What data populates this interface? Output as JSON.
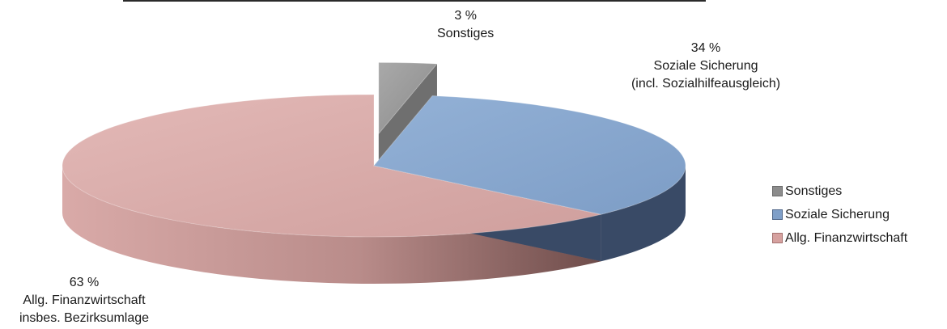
{
  "chart_data": {
    "type": "pie",
    "title": "",
    "slices": [
      {
        "label": "Sonstiges",
        "value": 3,
        "percent_text": "3 %",
        "label_lines": [
          "Sonstiges"
        ],
        "color": "#9a9a9a",
        "color_side": "#6f6f6f",
        "exploded": true
      },
      {
        "label": "Soziale Sicherung",
        "value": 34,
        "percent_text": "34 %",
        "label_lines": [
          "Soziale Sicherung",
          "(incl. Sozialhilfeausgleich)"
        ],
        "color": "#87a7cf",
        "color_side": "#394a66",
        "exploded": false
      },
      {
        "label": "Allg. Finanzwirtschaft",
        "value": 63,
        "percent_text": "63 %",
        "label_lines": [
          "Allg. Finanzwirtschaft",
          "insbes. Bezirksumlage"
        ],
        "color": "#dba8a6",
        "color_side": "#a07270",
        "exploded": false
      }
    ],
    "legend": {
      "placement": "right",
      "entries": [
        "Sonstiges",
        "Soziale Sicherung",
        "Allg. Finanzwirtschaft"
      ]
    }
  }
}
